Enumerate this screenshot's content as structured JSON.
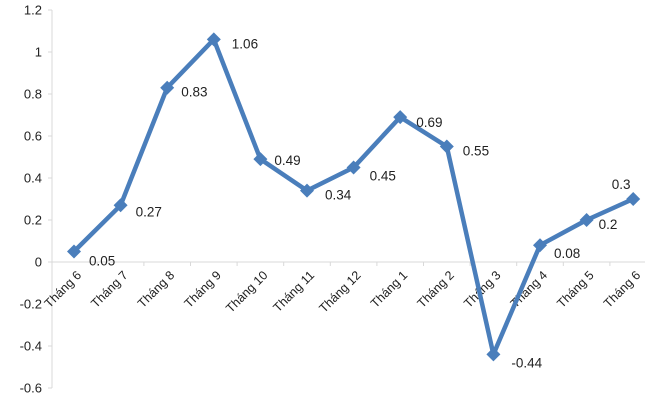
{
  "chart_data": {
    "type": "line",
    "title": "",
    "xlabel": "",
    "ylabel": "",
    "categories": [
      "Tháng 6",
      "Tháng 7",
      "Tháng 8",
      "Tháng 9",
      "Tháng 10",
      "Tháng 11",
      "Tháng 12",
      "Tháng 1",
      "Tháng 2",
      "Tháng 3",
      "Tháng 4",
      "Tháng 5",
      "Tháng 6"
    ],
    "series": [
      {
        "values": [
          0.05,
          0.27,
          0.83,
          1.06,
          0.49,
          0.34,
          0.45,
          0.69,
          0.55,
          -0.44,
          0.08,
          0.2,
          0.3
        ],
        "color": "#4a7ebb",
        "marker": "diamond"
      }
    ],
    "data_labels": [
      "0.05",
      "0.27",
      "0.83",
      "1.06",
      "0.49",
      "0.34",
      "0.45",
      "0.69",
      "0.55",
      "-0.44",
      "0.08",
      "0.2",
      "0.3"
    ],
    "y_ticks": [
      "1.2",
      "1",
      "0.8",
      "0.6",
      "0.4",
      "0.2",
      "0",
      "-0.2",
      "-0.4",
      "-0.6"
    ],
    "ylim": [
      -0.6,
      1.2
    ],
    "grid": false,
    "legend": "none"
  }
}
